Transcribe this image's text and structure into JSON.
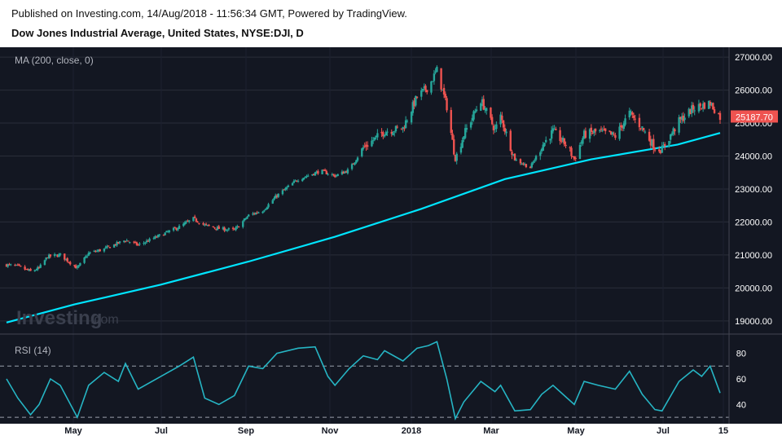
{
  "header": {
    "published": "Published on Investing.com, 14/Aug/2018 - 11:56:34 GMT, Powered by TradingView.",
    "instrument": "Dow Jones Industrial Average, United States, NYSE:DJI, D"
  },
  "watermark": {
    "brand": "Investing",
    "suffix": ".com"
  },
  "colors": {
    "background": "#131722",
    "up": "#26a69a",
    "down": "#ef5350",
    "ma": "#00e5ff",
    "rsi": "#26b5c4",
    "grid": "#2a2e39"
  },
  "chart_data": [
    {
      "type": "candlestick",
      "pane": "price",
      "indicator_label": "MA (200, close, 0)",
      "y_ticks": [
        "27000.00",
        "26000.00",
        "25000.00",
        "24000.00",
        "23000.00",
        "22000.00",
        "21000.00",
        "20000.00",
        "19000.00"
      ],
      "ylim": [
        18600,
        27300
      ],
      "last_value_label": "25187.70",
      "last_value": 25187.7,
      "x_ticks": [
        "May",
        "Jul",
        "Sep",
        "Nov",
        "2018",
        "Mar",
        "May",
        "Jul",
        "15"
      ],
      "close_path": [
        [
          "2017-03-28",
          20700
        ],
        [
          "2017-04-05",
          20650
        ],
        [
          "2017-04-14",
          20500
        ],
        [
          "2017-04-20",
          20600
        ],
        [
          "2017-04-26",
          20950
        ],
        [
          "2017-05-05",
          21000
        ],
        [
          "2017-05-17",
          20600
        ],
        [
          "2017-05-25",
          21050
        ],
        [
          "2017-06-05",
          21180
        ],
        [
          "2017-06-20",
          21450
        ],
        [
          "2017-06-29",
          21300
        ],
        [
          "2017-07-15",
          21600
        ],
        [
          "2017-07-28",
          21850
        ],
        [
          "2017-08-07",
          22100
        ],
        [
          "2017-08-15",
          21900
        ],
        [
          "2017-08-25",
          21800
        ],
        [
          "2017-09-05",
          21750
        ],
        [
          "2017-09-15",
          22200
        ],
        [
          "2017-09-25",
          22350
        ],
        [
          "2017-10-05",
          22800
        ],
        [
          "2017-10-20",
          23300
        ],
        [
          "2017-11-05",
          23550
        ],
        [
          "2017-11-15",
          23400
        ],
        [
          "2017-11-25",
          23580
        ],
        [
          "2017-12-05",
          24250
        ],
        [
          "2017-12-20",
          24750
        ],
        [
          "2018-01-02",
          24850
        ],
        [
          "2018-01-12",
          25800
        ],
        [
          "2018-01-20",
          26100
        ],
        [
          "2018-01-26",
          26600
        ],
        [
          "2018-02-02",
          25500
        ],
        [
          "2018-02-08",
          23900
        ],
        [
          "2018-02-14",
          24650
        ],
        [
          "2018-02-26",
          25700
        ],
        [
          "2018-03-08",
          24800
        ],
        [
          "2018-03-12",
          25200
        ],
        [
          "2018-03-22",
          23900
        ],
        [
          "2018-04-02",
          23650
        ],
        [
          "2018-04-10",
          24300
        ],
        [
          "2018-04-18",
          24750
        ],
        [
          "2018-04-28",
          24300
        ],
        [
          "2018-05-03",
          23900
        ],
        [
          "2018-05-10",
          24650
        ],
        [
          "2018-05-20",
          24750
        ],
        [
          "2018-06-01",
          24600
        ],
        [
          "2018-06-11",
          25300
        ],
        [
          "2018-06-20",
          24850
        ],
        [
          "2018-06-29",
          24250
        ],
        [
          "2018-07-04",
          24200
        ],
        [
          "2018-07-16",
          25050
        ],
        [
          "2018-07-26",
          25450
        ],
        [
          "2018-08-07",
          25600
        ],
        [
          "2018-08-14",
          25187.7
        ]
      ],
      "moving_average": {
        "label": "MA (200, close, 0)",
        "points": [
          [
            "2017-03-28",
            18950
          ],
          [
            "2017-05-15",
            19500
          ],
          [
            "2017-07-15",
            20100
          ],
          [
            "2017-09-15",
            20800
          ],
          [
            "2017-11-15",
            21550
          ],
          [
            "2018-01-15",
            22400
          ],
          [
            "2018-03-15",
            23300
          ],
          [
            "2018-05-15",
            23900
          ],
          [
            "2018-07-15",
            24350
          ],
          [
            "2018-08-14",
            24700
          ]
        ]
      }
    },
    {
      "type": "line",
      "pane": "indicator",
      "indicator_label": "RSI (14)",
      "y_ticks": [
        "80",
        "60",
        "40"
      ],
      "ylim": [
        25,
        95
      ],
      "bands": [
        70,
        30
      ],
      "points": [
        [
          "2017-03-28",
          60
        ],
        [
          "2017-04-05",
          45
        ],
        [
          "2017-04-14",
          32
        ],
        [
          "2017-04-20",
          40
        ],
        [
          "2017-04-28",
          60
        ],
        [
          "2017-05-05",
          55
        ],
        [
          "2017-05-17",
          30
        ],
        [
          "2017-05-25",
          55
        ],
        [
          "2017-06-05",
          65
        ],
        [
          "2017-06-15",
          58
        ],
        [
          "2017-06-20",
          72
        ],
        [
          "2017-06-29",
          52
        ],
        [
          "2017-07-15",
          62
        ],
        [
          "2017-07-28",
          70
        ],
        [
          "2017-08-07",
          77
        ],
        [
          "2017-08-15",
          45
        ],
        [
          "2017-08-25",
          40
        ],
        [
          "2017-09-05",
          47
        ],
        [
          "2017-09-15",
          70
        ],
        [
          "2017-09-25",
          68
        ],
        [
          "2017-10-05",
          80
        ],
        [
          "2017-10-20",
          84
        ],
        [
          "2017-11-01",
          85
        ],
        [
          "2017-11-10",
          62
        ],
        [
          "2017-11-15",
          55
        ],
        [
          "2017-11-25",
          68
        ],
        [
          "2017-12-05",
          78
        ],
        [
          "2017-12-15",
          75
        ],
        [
          "2017-12-20",
          82
        ],
        [
          "2018-01-02",
          74
        ],
        [
          "2018-01-12",
          84
        ],
        [
          "2018-01-20",
          86
        ],
        [
          "2018-01-26",
          89
        ],
        [
          "2018-02-02",
          60
        ],
        [
          "2018-02-08",
          29
        ],
        [
          "2018-02-14",
          42
        ],
        [
          "2018-02-26",
          58
        ],
        [
          "2018-03-08",
          50
        ],
        [
          "2018-03-12",
          55
        ],
        [
          "2018-03-22",
          35
        ],
        [
          "2018-04-02",
          36
        ],
        [
          "2018-04-10",
          48
        ],
        [
          "2018-04-18",
          55
        ],
        [
          "2018-04-28",
          45
        ],
        [
          "2018-05-03",
          40
        ],
        [
          "2018-05-10",
          58
        ],
        [
          "2018-05-20",
          55
        ],
        [
          "2018-06-01",
          52
        ],
        [
          "2018-06-11",
          66
        ],
        [
          "2018-06-20",
          48
        ],
        [
          "2018-06-29",
          36
        ],
        [
          "2018-07-04",
          35
        ],
        [
          "2018-07-16",
          58
        ],
        [
          "2018-07-26",
          67
        ],
        [
          "2018-08-01",
          62
        ],
        [
          "2018-08-07",
          70
        ],
        [
          "2018-08-14",
          49
        ]
      ]
    }
  ]
}
